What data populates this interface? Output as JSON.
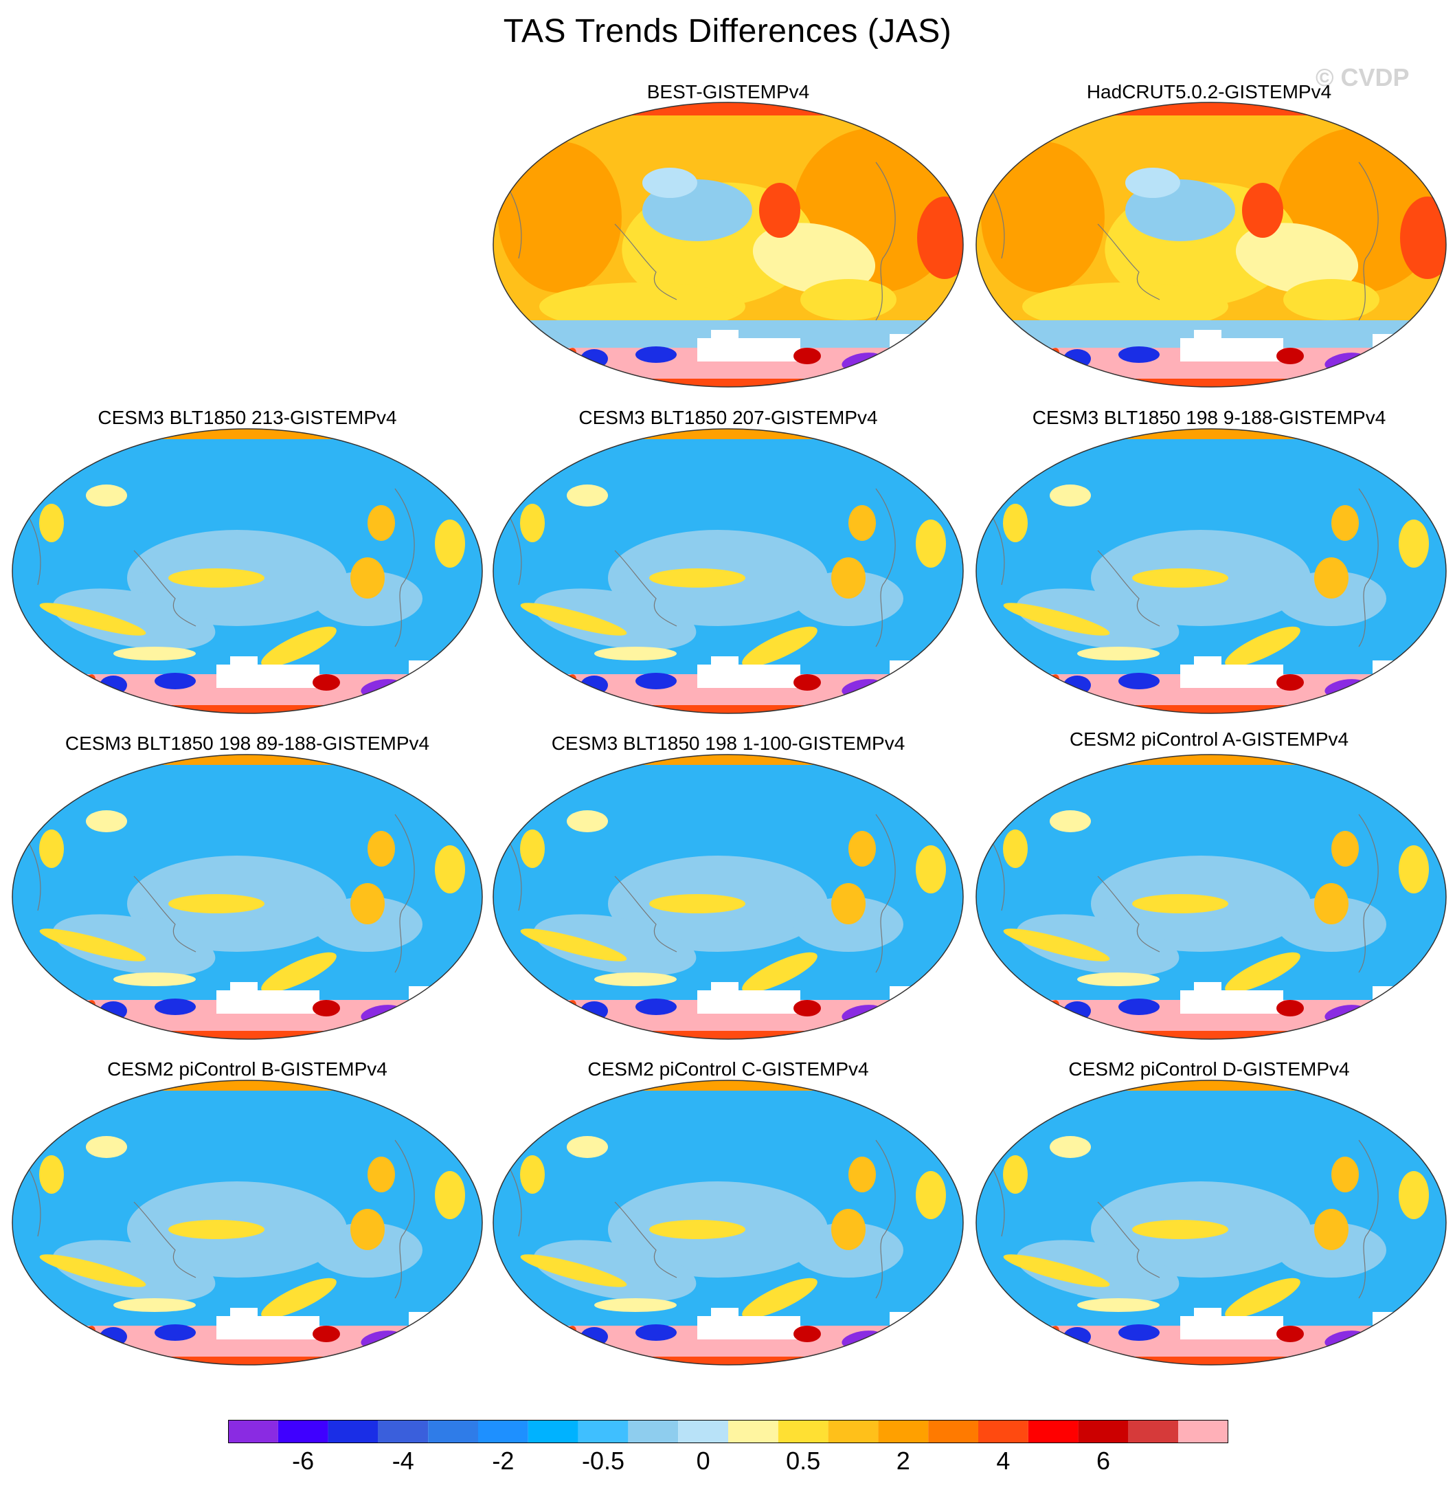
{
  "title": "TAS Trends Differences (JAS)",
  "watermark": "© CVDP",
  "panels": [
    {
      "title": "BEST-GISTEMPv4",
      "style": "warm"
    },
    {
      "title": "HadCRUT5.0.2-GISTEMPv4",
      "style": "warm"
    },
    {
      "title": "CESM3 BLT1850 213-GISTEMPv4",
      "style": "cool"
    },
    {
      "title": "CESM3 BLT1850 207-GISTEMPv4",
      "style": "cool"
    },
    {
      "title": "CESM3 BLT1850 198 9-188-GISTEMPv4",
      "style": "cool"
    },
    {
      "title": "CESM3 BLT1850 198 89-188-GISTEMPv4",
      "style": "cool"
    },
    {
      "title": "CESM3 BLT1850 198 1-100-GISTEMPv4",
      "style": "cool"
    },
    {
      "title": "CESM2 piControl A-GISTEMPv4",
      "style": "cool"
    },
    {
      "title": "CESM2 piControl B-GISTEMPv4",
      "style": "cool"
    },
    {
      "title": "CESM2 piControl C-GISTEMPv4",
      "style": "cool"
    },
    {
      "title": "CESM2 piControl D-GISTEMPv4",
      "style": "cool"
    }
  ],
  "colorbar": {
    "colors": [
      "#8a2be2",
      "#3f00ff",
      "#1a2ee6",
      "#3a5fdc",
      "#2f7ce8",
      "#1e90ff",
      "#00b2ff",
      "#3fbfff",
      "#8ecdee",
      "#b8e2f8",
      "#fff5a0",
      "#ffe033",
      "#ffc01a",
      "#ffa000",
      "#ff7a00",
      "#ff4a10",
      "#ff0000",
      "#cc0000",
      "#d63a3a",
      "#ffb0b8"
    ],
    "tick_labels": [
      "-6",
      "-4",
      "-2",
      "-0.5",
      "0",
      "0.5",
      "2",
      "4",
      "6"
    ]
  },
  "palette": {
    "ocean_cool": "#2fb4f5",
    "light_cool": "#8ecdee",
    "pale_cool": "#b8e2f8",
    "yellow": "#ffe033",
    "pale_yellow": "#fff5a0",
    "orange": "#ffc01a",
    "dark_orange": "#ffa000",
    "red": "#ff4a10",
    "pink": "#ffb0b8",
    "purple": "#8a2be2",
    "deep_blue": "#1a2ee6",
    "coast": "#777777"
  }
}
